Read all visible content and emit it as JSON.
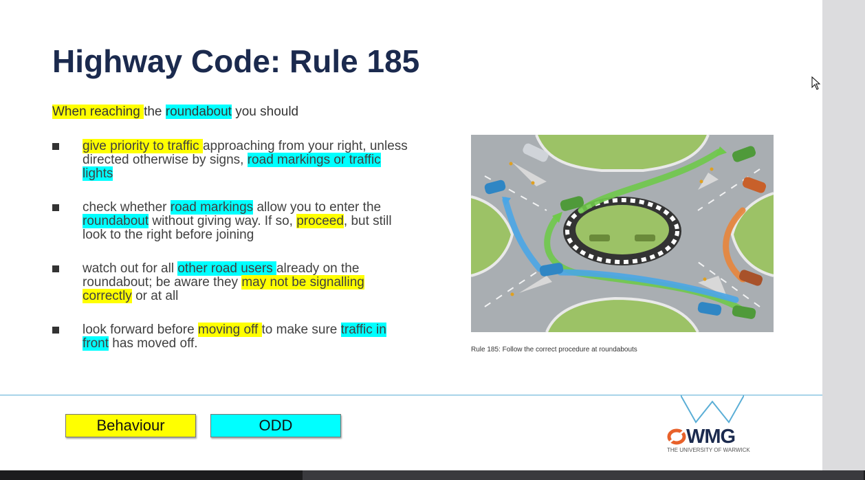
{
  "slide": {
    "title": "Highway Code: Rule 185",
    "intro": [
      {
        "text": "When reaching ",
        "hl": "y"
      },
      {
        "text": "the ",
        "hl": ""
      },
      {
        "text": "roundabout",
        "hl": "c"
      },
      {
        "text": " you should",
        "hl": ""
      }
    ],
    "bullets": [
      [
        {
          "text": "give priority to traffic ",
          "hl": "y"
        },
        {
          "text": "approaching from your right, unless directed otherwise by signs, ",
          "hl": ""
        },
        {
          "text": "road markings or traffic lights",
          "hl": "c"
        }
      ],
      [
        {
          "text": "check whether ",
          "hl": ""
        },
        {
          "text": "road markings",
          "hl": "c"
        },
        {
          "text": " allow you to enter the ",
          "hl": ""
        },
        {
          "text": "roundabout",
          "hl": "c"
        },
        {
          "text": " without giving way. If so, ",
          "hl": ""
        },
        {
          "text": "proceed",
          "hl": "y"
        },
        {
          "text": ", but still look to the right before joining",
          "hl": ""
        }
      ],
      [
        {
          "text": "watch out for all ",
          "hl": ""
        },
        {
          "text": "other road users ",
          "hl": "c"
        },
        {
          "text": "already on the roundabout; be aware they ",
          "hl": ""
        },
        {
          "text": "may not be signalling correctly",
          "hl": "y"
        },
        {
          "text": " or at all",
          "hl": ""
        }
      ],
      [
        {
          "text": "look forward before ",
          "hl": ""
        },
        {
          "text": "moving off ",
          "hl": "y"
        },
        {
          "text": "to make sure ",
          "hl": ""
        },
        {
          "text": "traffic in front",
          "hl": "c"
        },
        {
          "text": " has moved off.",
          "hl": ""
        }
      ]
    ],
    "caption": "Rule 185: Follow the correct procedure at roundabouts",
    "legend": {
      "behaviour": "Behaviour",
      "odd": "ODD"
    },
    "logo": {
      "name": "WMG",
      "subtitle": "THE UNIVERSITY OF WARWICK"
    }
  },
  "colors": {
    "behaviour_highlight": "#ffff00",
    "odd_highlight": "#00ffff",
    "title": "#1b2a4e",
    "accent_line": "#5aaed6"
  },
  "icons": [
    "bullet-square-icon",
    "mouse-cursor-icon",
    "wmg-logo-icon"
  ]
}
